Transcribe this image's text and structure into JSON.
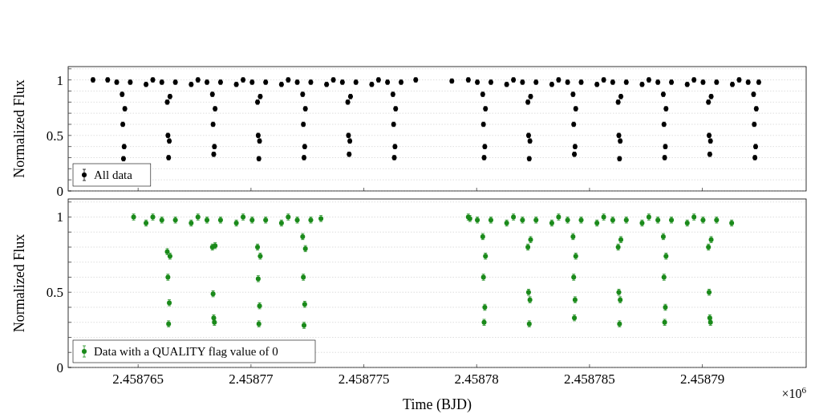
{
  "chart_data": [
    {
      "type": "scatter",
      "ylabel": "Normalized Flux",
      "xlim": [
        2.4587619,
        2.4587946
      ],
      "xticks": [
        2.458765,
        2.45877,
        2.458775,
        2.45878,
        2.458785,
        2.45879
      ],
      "ylim": [
        0,
        1.12
      ],
      "yticks": [
        0,
        {
          "value": 0.1,
          "label": null
        },
        {
          "value": 0.2,
          "label": null
        },
        {
          "value": 0.3,
          "label": null
        },
        {
          "value": 0.4,
          "label": null
        },
        0.5,
        {
          "value": 0.6,
          "label": null
        },
        {
          "value": 0.7,
          "label": null
        },
        {
          "value": 0.8,
          "label": null
        },
        {
          "value": 0.9,
          "label": null
        },
        1,
        {
          "value": 1.1,
          "label": null
        }
      ],
      "grid": "y",
      "tick_labels": "y",
      "legend": "bottom left",
      "marker": "circle",
      "series": [
        {
          "name": "All data",
          "color": "#000000",
          "x": [
            2.458763,
            2.45876365,
            2.45876405,
            2.45876429,
            2.45876432,
            2.45876435,
            2.45876438,
            2.45876441,
            2.45876465,
            2.45876535,
            2.45876565,
            2.45876605,
            2.45876629,
            2.45876632,
            2.45876635,
            2.45876638,
            2.45876641,
            2.45876665,
            2.45876735,
            2.45876765,
            2.45876805,
            2.45876829,
            2.45876832,
            2.45876835,
            2.45876838,
            2.45876841,
            2.45876865,
            2.45876935,
            2.45876965,
            2.45877005,
            2.45877029,
            2.45877032,
            2.45877035,
            2.45877038,
            2.45877041,
            2.45877065,
            2.45877135,
            2.45877165,
            2.45877205,
            2.45877229,
            2.45877232,
            2.45877235,
            2.45877238,
            2.45877241,
            2.45877265,
            2.45877335,
            2.45877365,
            2.45877405,
            2.45877429,
            2.45877432,
            2.45877435,
            2.45877438,
            2.45877441,
            2.45877465,
            2.45877535,
            2.45877565,
            2.45877605,
            2.45877629,
            2.45877632,
            2.45877635,
            2.45877638,
            2.45877641,
            2.45877665,
            2.4587773,
            2.4587789,
            2.45877963,
            2.45878003,
            2.45878027,
            2.4587803,
            2.45878033,
            2.45878036,
            2.45878039,
            2.45878063,
            2.45878133,
            2.45878163,
            2.45878203,
            2.45878227,
            2.4587823,
            2.45878233,
            2.45878236,
            2.45878239,
            2.45878263,
            2.45878333,
            2.45878363,
            2.45878403,
            2.45878427,
            2.4587843,
            2.45878433,
            2.45878436,
            2.45878439,
            2.45878463,
            2.45878533,
            2.45878563,
            2.45878603,
            2.45878627,
            2.4587863,
            2.45878633,
            2.45878636,
            2.45878639,
            2.45878663,
            2.45878733,
            2.45878763,
            2.45878803,
            2.45878827,
            2.4587883,
            2.45878833,
            2.45878836,
            2.45878839,
            2.45878863,
            2.45878933,
            2.45878963,
            2.45879003,
            2.45879027,
            2.4587903,
            2.45879033,
            2.45879036,
            2.45879039,
            2.45879063,
            2.45879133,
            2.45879163,
            2.45879203,
            2.45879227,
            2.4587923,
            2.45879233,
            2.45879236,
            2.45879239,
            2.4587925
          ],
          "values": [
            1.0,
            1.0,
            0.98,
            0.87,
            0.6,
            0.29,
            0.4,
            0.74,
            0.98,
            0.96,
            1.0,
            0.98,
            0.8,
            0.5,
            0.3,
            0.45,
            0.85,
            0.98,
            0.96,
            1.0,
            0.98,
            0.87,
            0.6,
            0.33,
            0.4,
            0.74,
            0.98,
            0.96,
            1.0,
            0.98,
            0.8,
            0.5,
            0.29,
            0.45,
            0.85,
            0.98,
            0.96,
            1.0,
            0.98,
            0.87,
            0.6,
            0.3,
            0.4,
            0.74,
            0.98,
            0.96,
            1.0,
            0.98,
            0.8,
            0.5,
            0.33,
            0.45,
            0.85,
            0.98,
            0.96,
            1.0,
            0.98,
            0.87,
            0.6,
            0.3,
            0.4,
            0.74,
            0.98,
            1.0,
            0.99,
            1.0,
            0.98,
            0.87,
            0.6,
            0.3,
            0.4,
            0.74,
            0.98,
            0.96,
            1.0,
            0.98,
            0.8,
            0.5,
            0.29,
            0.45,
            0.85,
            0.98,
            0.96,
            1.0,
            0.98,
            0.87,
            0.6,
            0.33,
            0.4,
            0.74,
            0.98,
            0.96,
            1.0,
            0.98,
            0.8,
            0.5,
            0.29,
            0.45,
            0.85,
            0.98,
            0.96,
            1.0,
            0.98,
            0.87,
            0.6,
            0.3,
            0.4,
            0.74,
            0.98,
            0.96,
            1.0,
            0.98,
            0.8,
            0.5,
            0.33,
            0.45,
            0.85,
            0.98,
            0.96,
            1.0,
            0.98,
            0.87,
            0.6,
            0.3,
            0.4,
            0.74,
            0.98
          ],
          "errors": [
            0.02,
            0.02,
            0.02,
            0.02,
            0.02,
            0.02,
            0.02,
            0.02,
            0.02,
            0.02,
            0.02,
            0.02,
            0.02,
            0.02,
            0.02,
            0.02,
            0.02,
            0.02,
            0.02,
            0.02,
            0.02,
            0.02,
            0.02,
            0.02,
            0.02,
            0.02,
            0.02,
            0.02,
            0.02,
            0.02,
            0.02,
            0.02,
            0.02,
            0.02,
            0.02,
            0.02,
            0.02,
            0.02,
            0.02,
            0.02,
            0.02,
            0.02,
            0.02,
            0.02,
            0.02,
            0.02,
            0.02,
            0.02,
            0.02,
            0.02,
            0.02,
            0.02,
            0.02,
            0.02,
            0.02,
            0.02,
            0.02,
            0.02,
            0.02,
            0.02,
            0.02,
            0.02,
            0.02,
            0.02,
            0.02,
            0.02,
            0.02,
            0.02,
            0.02,
            0.02,
            0.02,
            0.02,
            0.02,
            0.02,
            0.02,
            0.02,
            0.02,
            0.02,
            0.02,
            0.02,
            0.02,
            0.02,
            0.02,
            0.02,
            0.02,
            0.02,
            0.02,
            0.02,
            0.02,
            0.02,
            0.02,
            0.02,
            0.02,
            0.02,
            0.02,
            0.02,
            0.02,
            0.02,
            0.02,
            0.02,
            0.02,
            0.02,
            0.02,
            0.02,
            0.02,
            0.02,
            0.02,
            0.02,
            0.02,
            0.02,
            0.02,
            0.02,
            0.02,
            0.02,
            0.02,
            0.02,
            0.02,
            0.02,
            0.02,
            0.02,
            0.02,
            0.02,
            0.02,
            0.02,
            0.02,
            0.02,
            0.02
          ]
        }
      ]
    },
    {
      "type": "scatter",
      "ylabel": "Normalized Flux",
      "xlabel": "Time (BJD)",
      "annotations": [
        "×10$^{6}$"
      ],
      "xlim": [
        2.4587619,
        2.4587946
      ],
      "xticks": [
        2.458765,
        2.45877,
        2.458775,
        2.45878,
        2.458785,
        2.45879
      ],
      "ylim": [
        0,
        1.12
      ],
      "yticks": [
        0,
        {
          "value": 0.1,
          "label": null
        },
        {
          "value": 0.2,
          "label": null
        },
        {
          "value": 0.3,
          "label": null
        },
        {
          "value": 0.4,
          "label": null
        },
        0.5,
        {
          "value": 0.6,
          "label": null
        },
        {
          "value": 0.7,
          "label": null
        },
        {
          "value": 0.8,
          "label": null
        },
        {
          "value": 0.9,
          "label": null
        },
        1,
        {
          "value": 1.1,
          "label": null
        }
      ],
      "grid": "y",
      "legend": "bottom left",
      "marker": "circle",
      "series": [
        {
          "name": "Data with a QUALITY flag value of 0",
          "color": "#1a8a1a",
          "x": [
            2.4587648,
            2.45876535,
            2.45876565,
            2.45876605,
            2.45876629,
            2.45876632,
            2.45876635,
            2.45876638,
            2.45876641,
            2.45876665,
            2.45876735,
            2.45876765,
            2.45876805,
            2.45876829,
            2.45876832,
            2.45876835,
            2.45876838,
            2.45876841,
            2.45876865,
            2.45876935,
            2.45876965,
            2.45877005,
            2.45877029,
            2.45877032,
            2.45877035,
            2.45877038,
            2.45877041,
            2.45877065,
            2.45877135,
            2.45877165,
            2.45877205,
            2.45877229,
            2.45877232,
            2.45877235,
            2.45877238,
            2.45877241,
            2.45877265,
            2.4587731,
            2.4587797,
            2.45877963,
            2.45878003,
            2.45878027,
            2.4587803,
            2.45878033,
            2.45878036,
            2.45878039,
            2.45878063,
            2.45878133,
            2.45878163,
            2.45878203,
            2.45878227,
            2.4587823,
            2.45878233,
            2.45878236,
            2.45878239,
            2.45878263,
            2.45878333,
            2.45878363,
            2.45878403,
            2.45878427,
            2.4587843,
            2.45878433,
            2.45878436,
            2.45878439,
            2.45878463,
            2.45878533,
            2.45878563,
            2.45878603,
            2.45878627,
            2.4587863,
            2.45878633,
            2.45878636,
            2.45878639,
            2.45878663,
            2.45878733,
            2.45878763,
            2.45878803,
            2.45878827,
            2.4587883,
            2.45878833,
            2.45878836,
            2.45878839,
            2.45878863,
            2.45878933,
            2.45878963,
            2.45879003,
            2.45879027,
            2.4587903,
            2.45879033,
            2.45879036,
            2.45879039,
            2.45879063,
            2.4587913
          ],
          "values": [
            1.0,
            0.96,
            1.0,
            0.98,
            0.77,
            0.6,
            0.29,
            0.43,
            0.74,
            0.98,
            0.96,
            1.0,
            0.98,
            0.8,
            0.49,
            0.33,
            0.3,
            0.81,
            0.98,
            0.96,
            1.0,
            0.98,
            0.8,
            0.59,
            0.29,
            0.41,
            0.74,
            0.98,
            0.96,
            1.0,
            0.98,
            0.87,
            0.6,
            0.28,
            0.42,
            0.79,
            0.98,
            0.99,
            0.99,
            1.0,
            0.98,
            0.87,
            0.6,
            0.3,
            0.4,
            0.74,
            0.98,
            0.96,
            1.0,
            0.98,
            0.8,
            0.5,
            0.29,
            0.45,
            0.85,
            0.98,
            0.96,
            1.0,
            0.98,
            0.87,
            0.6,
            0.33,
            0.45,
            0.74,
            0.98,
            0.96,
            1.0,
            0.98,
            0.8,
            0.5,
            0.29,
            0.45,
            0.85,
            0.98,
            0.96,
            1.0,
            0.98,
            0.87,
            0.6,
            0.3,
            0.4,
            0.74,
            0.98,
            0.96,
            1.0,
            0.98,
            0.8,
            0.5,
            0.33,
            0.3,
            0.85,
            0.98,
            0.96
          ],
          "errors": [
            0.02,
            0.02,
            0.02,
            0.02,
            0.02,
            0.02,
            0.02,
            0.02,
            0.02,
            0.02,
            0.02,
            0.02,
            0.02,
            0.02,
            0.02,
            0.02,
            0.02,
            0.02,
            0.02,
            0.02,
            0.02,
            0.02,
            0.02,
            0.02,
            0.02,
            0.02,
            0.02,
            0.02,
            0.02,
            0.02,
            0.02,
            0.02,
            0.02,
            0.02,
            0.02,
            0.02,
            0.02,
            0.02,
            0.02,
            0.02,
            0.02,
            0.02,
            0.02,
            0.02,
            0.02,
            0.02,
            0.02,
            0.02,
            0.02,
            0.02,
            0.02,
            0.02,
            0.02,
            0.02,
            0.02,
            0.02,
            0.02,
            0.02,
            0.02,
            0.02,
            0.02,
            0.02,
            0.02,
            0.02,
            0.02,
            0.02,
            0.02,
            0.02,
            0.02,
            0.02,
            0.02,
            0.02,
            0.02,
            0.02,
            0.02,
            0.02,
            0.02,
            0.02,
            0.02,
            0.02,
            0.02,
            0.02,
            0.02,
            0.02,
            0.02,
            0.02,
            0.02,
            0.02,
            0.02,
            0.02,
            0.02,
            0.02,
            0.02
          ]
        }
      ]
    }
  ]
}
